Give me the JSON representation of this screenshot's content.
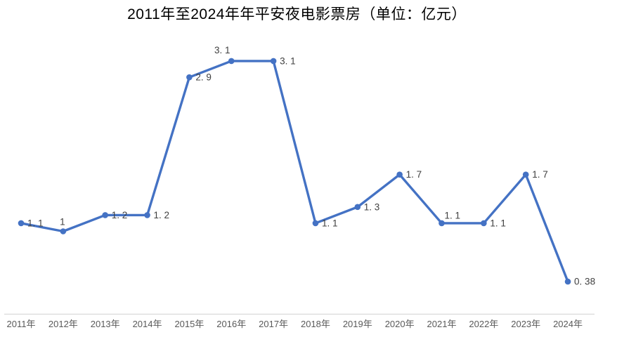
{
  "chart_data": {
    "type": "line",
    "title": "2011年至2024年年平安夜电影票房（单位：亿元）",
    "categories": [
      "2011年",
      "2012年",
      "2013年",
      "2014年",
      "2015年",
      "2016年",
      "2017年",
      "2018年",
      "2019年",
      "2020年",
      "2021年",
      "2022年",
      "2023年",
      "2024年"
    ],
    "values": [
      1.1,
      1,
      1.2,
      1.2,
      2.9,
      3.1,
      3.1,
      1.1,
      1.3,
      1.7,
      1.1,
      1.1,
      1.7,
      0.38
    ],
    "point_labels": [
      "1. 1",
      "1",
      "1. 2",
      "1. 2",
      "2. 9",
      "3. 1",
      "3. 1",
      "1. 1",
      "1. 3",
      "1. 7",
      "1. 1",
      "1. 1",
      "1. 7",
      "0. 38"
    ],
    "label_positions": [
      "right",
      "above",
      "right",
      "right",
      "right",
      "above-left",
      "right",
      "right",
      "right",
      "right",
      "above-right",
      "right",
      "right",
      "right"
    ],
    "xlabel": "",
    "ylabel": "",
    "ylim": [
      0,
      3.5
    ],
    "grid": false,
    "legend": "none",
    "colors": {
      "line": "#4472C4",
      "marker": "#4472C4",
      "data_label": "#404040",
      "axis_line": "#D9D9D9",
      "tick_label": "#595959",
      "background": "#FFFFFF",
      "title": "#000000"
    }
  }
}
